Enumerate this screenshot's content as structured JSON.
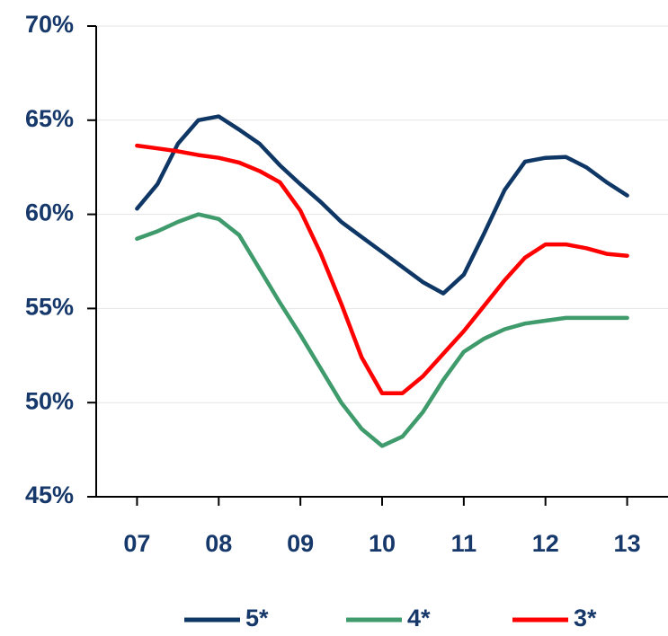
{
  "chart_data": {
    "type": "line",
    "x": [
      7,
      7.25,
      7.5,
      7.75,
      8,
      8.25,
      8.5,
      8.75,
      9,
      9.25,
      9.5,
      9.75,
      10,
      10.25,
      10.5,
      10.75,
      11,
      11.25,
      11.5,
      11.75,
      12,
      12.25,
      12.5,
      12.75,
      13
    ],
    "series": [
      {
        "name": "5*",
        "color": "#0f3766",
        "values": [
          60.3,
          61.6,
          63.75,
          65.0,
          65.2,
          64.5,
          63.75,
          62.6,
          61.6,
          60.65,
          59.6,
          58.8,
          58.0,
          57.2,
          56.4,
          55.8,
          56.8,
          59.0,
          61.3,
          62.8,
          63.0,
          63.05,
          62.5,
          61.7,
          61.0
        ]
      },
      {
        "name": "4*",
        "color": "#3f9b6b",
        "values": [
          58.7,
          59.1,
          59.6,
          60.0,
          59.75,
          58.9,
          57.1,
          55.3,
          53.6,
          51.8,
          50.0,
          48.6,
          47.7,
          48.2,
          49.5,
          51.2,
          52.7,
          53.4,
          53.9,
          54.2,
          54.35,
          54.5,
          54.5,
          54.5,
          54.5
        ]
      },
      {
        "name": "3*",
        "color": "#ff0000",
        "values": [
          63.65,
          63.5,
          63.35,
          63.15,
          63.0,
          62.75,
          62.3,
          61.7,
          60.2,
          57.9,
          55.25,
          52.4,
          50.5,
          50.5,
          51.4,
          52.6,
          53.8,
          55.15,
          56.5,
          57.7,
          58.4,
          58.4,
          58.2,
          57.9,
          57.8
        ]
      }
    ],
    "xlim": [
      6.5,
      13.5
    ],
    "xticks": [
      {
        "value": 7,
        "label": "07"
      },
      {
        "value": 8,
        "label": "08"
      },
      {
        "value": 9,
        "label": "09"
      },
      {
        "value": 10,
        "label": "10"
      },
      {
        "value": 11,
        "label": "11"
      },
      {
        "value": 12,
        "label": "12"
      },
      {
        "value": 13,
        "label": "13"
      }
    ],
    "ylim": [
      45,
      70
    ],
    "yticks": [
      {
        "value": 45,
        "label": "45%"
      },
      {
        "value": 50,
        "label": "50%"
      },
      {
        "value": 55,
        "label": "55%"
      },
      {
        "value": 60,
        "label": "60%"
      },
      {
        "value": 65,
        "label": "65%"
      },
      {
        "value": 70,
        "label": "70%"
      }
    ],
    "grid": true,
    "legend": "bottom"
  }
}
